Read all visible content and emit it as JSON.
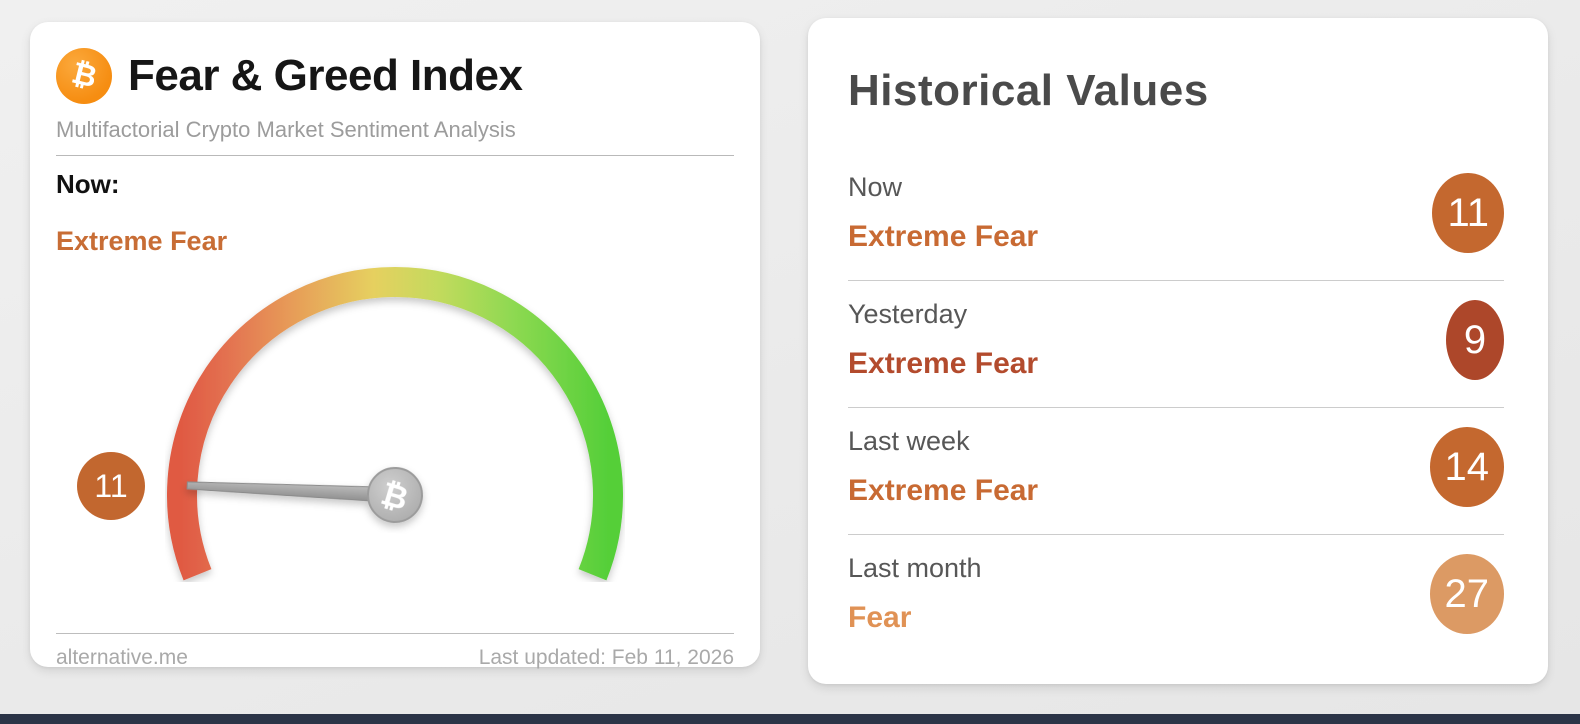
{
  "page": {
    "background": "#ebebeb",
    "bottom_bar_color": "#2b3447"
  },
  "fear_greed_card": {
    "title": "Fear & Greed Index",
    "subtitle": "Multifactorial Crypto Market Sentiment Analysis",
    "bitcoin_icon": {
      "glyph": "₿",
      "color": "#f7941d"
    },
    "now_label": "Now:",
    "now_value": "Extreme Fear",
    "now_color": "#c86d35",
    "gauge": {
      "value": 11,
      "max": 100,
      "sweep_deg": 224,
      "badge_color": "#c2672f",
      "needle_color": "#a3a3a3",
      "hub_glyph": "₿",
      "arc_colors": [
        "#e05a43",
        "#e37050",
        "#e79a58",
        "#e6d05f",
        "#c3da5d",
        "#8dd951",
        "#55cf39"
      ]
    },
    "footer": {
      "source": "alternative.me",
      "last_updated": "Last updated: Feb 11, 2026"
    }
  },
  "historical": {
    "title": "Historical Values",
    "rows": [
      {
        "label": "Now",
        "value": "Extreme Fear",
        "num": "11",
        "color": "#c86a33",
        "badge_color": "#c4682f"
      },
      {
        "label": "Yesterday",
        "value": "Extreme Fear",
        "num": "9",
        "color": "#b34b2d",
        "badge_color": "#ad472a"
      },
      {
        "label": "Last week",
        "value": "Extreme Fear",
        "num": "14",
        "color": "#c86a33",
        "badge_color": "#c4682f"
      },
      {
        "label": "Last month",
        "value": "Fear",
        "num": "27",
        "color": "#e09255",
        "badge_color": "#dc9a64"
      }
    ]
  },
  "chart_data": {
    "type": "gauge",
    "title": "Fear & Greed Index",
    "value": 11,
    "min": 0,
    "max": 100,
    "label": "Extreme Fear",
    "scale": "red (extreme fear, 0) through yellow to green (extreme greed, 100)",
    "historical": [
      {
        "period": "Now",
        "value": 11,
        "classification": "Extreme Fear"
      },
      {
        "period": "Yesterday",
        "value": 9,
        "classification": "Extreme Fear"
      },
      {
        "period": "Last week",
        "value": 14,
        "classification": "Extreme Fear"
      },
      {
        "period": "Last month",
        "value": 27,
        "classification": "Fear"
      }
    ]
  }
}
